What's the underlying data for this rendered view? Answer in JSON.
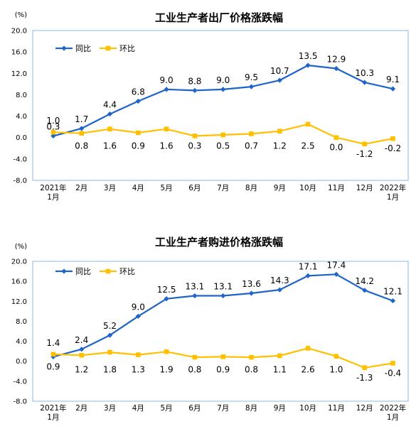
{
  "colors": {
    "series_1": "#1f64c8",
    "series_2": "#ffc000",
    "border": "#8eb4e3"
  },
  "chart_data": [
    {
      "type": "line",
      "title": "工业生产者出厂价格涨跌幅",
      "unit": "(%)",
      "categories": [
        "2021年\n1月",
        "2月",
        "3月",
        "4月",
        "5月",
        "6月",
        "7月",
        "8月",
        "9月",
        "10月",
        "11月",
        "12月",
        "2022年\n1月"
      ],
      "ylim": [
        -8.0,
        20.0
      ],
      "yticks": [
        "20.0",
        "16.0",
        "12.0",
        "8.0",
        "4.0",
        "0.0",
        "-4.0",
        "-8.0"
      ],
      "legend_position": "top-left",
      "series": [
        {
          "name": "同比",
          "values": [
            0.3,
            1.7,
            4.4,
            6.8,
            9.0,
            8.8,
            9.0,
            9.5,
            10.7,
            13.5,
            12.9,
            10.3,
            9.1
          ],
          "labels": [
            "0.3",
            "1.7",
            "4.4",
            "6.8",
            "9.0",
            "8.8",
            "9.0",
            "9.5",
            "10.7",
            "13.5",
            "12.9",
            "10.3",
            "9.1"
          ]
        },
        {
          "name": "环比",
          "values": [
            1.0,
            0.8,
            1.6,
            0.9,
            1.6,
            0.3,
            0.5,
            0.7,
            1.2,
            2.5,
            0.0,
            -1.2,
            -0.2
          ],
          "labels": [
            "1.0",
            "0.8",
            "1.6",
            "0.9",
            "1.6",
            "0.3",
            "0.5",
            "0.7",
            "1.2",
            "2.5",
            "0.0",
            "-1.2",
            "-0.2"
          ]
        }
      ]
    },
    {
      "type": "line",
      "title": "工业生产者购进价格涨跌幅",
      "unit": "(%)",
      "categories": [
        "2021年\n1月",
        "2月",
        "3月",
        "4月",
        "5月",
        "6月",
        "7月",
        "8月",
        "9月",
        "10月",
        "11月",
        "12月",
        "2022年\n1月"
      ],
      "ylim": [
        -8.0,
        20.0
      ],
      "yticks": [
        "20.0",
        "16.0",
        "12.0",
        "8.0",
        "4.0",
        "0.0",
        "-4.0",
        "-8.0"
      ],
      "legend_position": "top-left",
      "series": [
        {
          "name": "同比",
          "values": [
            0.9,
            2.4,
            5.2,
            9.0,
            12.5,
            13.1,
            13.1,
            13.6,
            14.3,
            17.1,
            17.4,
            14.2,
            12.1
          ],
          "labels": [
            "0.9",
            "2.4",
            "5.2",
            "9.0",
            "12.5",
            "13.1",
            "13.1",
            "13.6",
            "14.3",
            "17.1",
            "17.4",
            "14.2",
            "12.1"
          ]
        },
        {
          "name": "环比",
          "values": [
            1.4,
            1.2,
            1.8,
            1.3,
            1.9,
            0.8,
            0.9,
            0.8,
            1.1,
            2.6,
            1.0,
            -1.3,
            -0.4
          ],
          "labels": [
            "1.4",
            "1.2",
            "1.8",
            "1.3",
            "1.9",
            "0.8",
            "0.9",
            "0.8",
            "1.1",
            "2.6",
            "1.0",
            "-1.3",
            "-0.4"
          ]
        }
      ]
    }
  ]
}
